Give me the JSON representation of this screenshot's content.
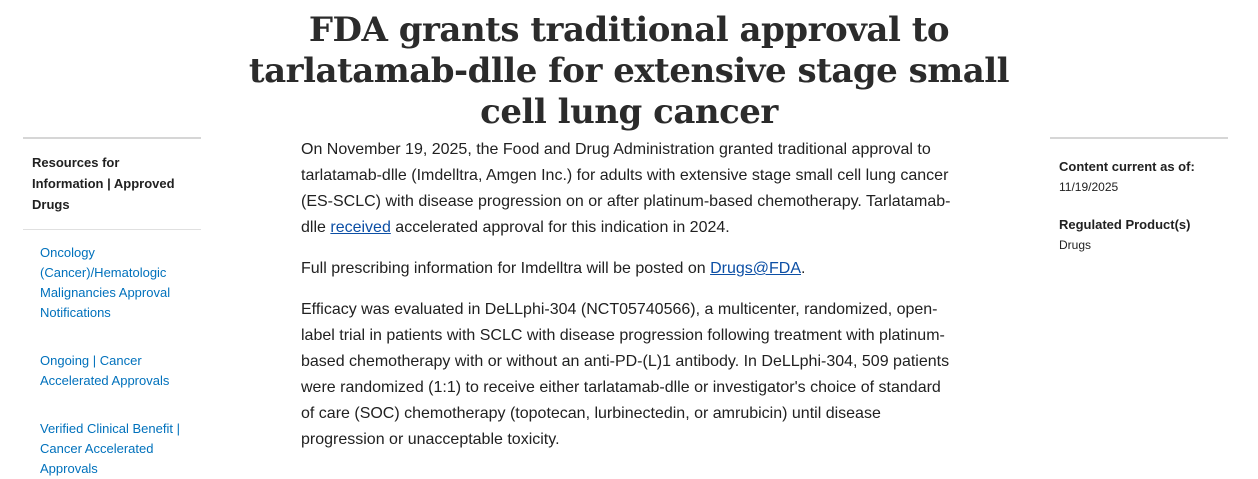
{
  "page": {
    "title": "FDA grants traditional approval to tarlatamab-dlle for extensive stage small cell lung cancer",
    "left_nav": {
      "heading": "Resources for Information | Approved Drugs",
      "links": [
        "Oncology (Cancer)/Hematologic Malignancies Approval Notifications",
        "Ongoing | Cancer Accelerated Approvals",
        "Verified Clinical Benefit | Cancer Accelerated Approvals"
      ]
    },
    "paragraphs": [
      {
        "before": "On November 19, 2025, the Food and Drug Administration granted traditional approval to tarlatamab-dlle (Imdelltra, Amgen Inc.) for adults with extensive stage small cell lung cancer (ES-SCLC) with disease progression on or after platinum-based chemotherapy. Tarlatamab-dlle ",
        "link": "received",
        "after": " accelerated approval for this indication in 2024."
      },
      {
        "before": "Full prescribing information for Imdelltra will be posted on ",
        "link": "Drugs@FDA",
        "after": "."
      },
      {
        "before": "Efficacy was evaluated in DeLLphi-304 (NCT05740566), a multicenter, randomized, open-label trial in patients with SCLC with disease progression following treatment with platinum-based chemotherapy with or without an anti-PD-(L)1 antibody. In DeLLphi-304, 509 patients were randomized (1:1) to receive either tarlatamab-dlle or investigator's choice of standard of care (SOC) chemotherapy (topotecan, lurbinectedin, or amrubicin) until disease progression or unacceptable toxicity.",
        "link": null,
        "after": null
      }
    ],
    "right_meta": {
      "content_label": "Content current as of:",
      "content_date": "11/19/2025",
      "product_label": "Regulated Product(s)",
      "product_value": "Drugs"
    }
  }
}
